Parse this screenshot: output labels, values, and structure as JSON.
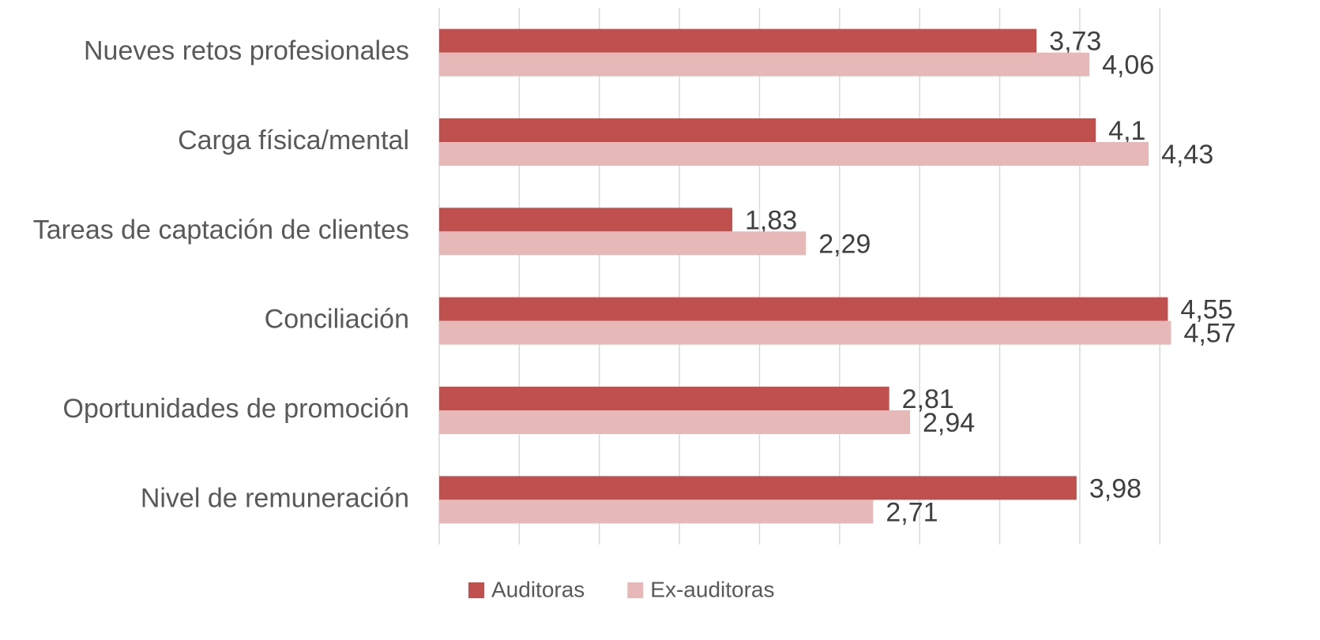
{
  "chart_data": {
    "type": "bar",
    "orientation": "horizontal",
    "categories": [
      "Nueves retos profesionales",
      "Carga física/mental",
      "Tareas de captación de clientes",
      "Conciliación",
      "Oportunidades de promoción",
      "Nivel de remuneración"
    ],
    "series": [
      {
        "name": "Auditoras",
        "color": "#c0504d",
        "values": [
          3.73,
          4.1,
          1.83,
          4.55,
          2.81,
          3.98
        ],
        "value_labels": [
          "3,73",
          "4,1",
          "1,83",
          "4,55",
          "2,81",
          "3,98"
        ]
      },
      {
        "name": "Ex-auditoras",
        "color": "#e6b9b8",
        "values": [
          4.06,
          4.43,
          2.29,
          4.57,
          2.94,
          2.71
        ],
        "value_labels": [
          "4,06",
          "4,43",
          "2,29",
          "4,57",
          "2,94",
          "2,71"
        ]
      }
    ],
    "xlim": [
      0,
      5.5
    ],
    "xticks": [
      0,
      0.5,
      1,
      1.5,
      2,
      2.5,
      3,
      3.5,
      4,
      4.5
    ],
    "grid": true,
    "legend": "bottom"
  }
}
